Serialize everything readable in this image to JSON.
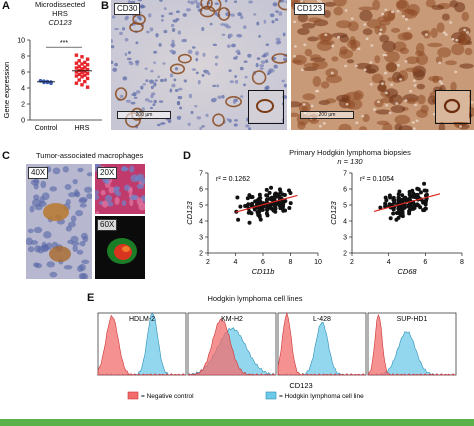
{
  "panels": {
    "A": {
      "letter": "A",
      "title_line1": "Microdissected",
      "title_line2": "HRS",
      "gene": "CD123",
      "significance": "***",
      "chart_data": {
        "type": "scatter",
        "categories": [
          "Control",
          "HRS"
        ],
        "ylabel": "Gene expression",
        "ylim": [
          0,
          10
        ],
        "yticks": [
          0,
          2,
          4,
          6,
          8,
          10
        ],
        "series": [
          {
            "values": [
              4.9,
              4.7,
              4.8,
              4.6,
              4.9,
              4.85,
              4.7,
              4.75
            ],
            "marker": "circle",
            "color": "#3a5bb5"
          },
          {
            "values": [
              8.1,
              7.9,
              7.6,
              7.4,
              7.2,
              7.1,
              7.0,
              6.9,
              6.7,
              6.6,
              6.5,
              6.4,
              6.3,
              6.2,
              6.1,
              6.0,
              5.9,
              5.8,
              5.7,
              5.6,
              5.5,
              5.4,
              5.2,
              5.0,
              4.8,
              4.6,
              4.4,
              4.1
            ],
            "marker": "square",
            "color": "#e8252b"
          }
        ]
      }
    },
    "B": {
      "letter": "B",
      "left_label": "CD30",
      "right_label": "CD123",
      "scale_left": "200 µm",
      "scale_right": "200 µm"
    },
    "C": {
      "letter": "C",
      "title": "Tumor-associated macrophages",
      "label_40x": "40X",
      "label_20x": "20X",
      "label_60x": "60X"
    },
    "D": {
      "letter": "D",
      "title": "Primary Hodgkin lymphoma biopsies",
      "n_label": "n = 130",
      "chart_data": [
        {
          "type": "scatter",
          "xlabel": "CD11b",
          "ylabel": "CD123",
          "xlim": [
            2,
            10
          ],
          "ylim": [
            2,
            7
          ],
          "xticks": [
            2,
            4,
            6,
            8,
            10
          ],
          "yticks": [
            2,
            3,
            4,
            5,
            6,
            7
          ],
          "annotation": "r² = 0.1262",
          "trend": {
            "x0": 4.0,
            "y0": 4.55,
            "x1": 8.5,
            "y1": 5.6
          }
        },
        {
          "type": "scatter",
          "xlabel": "CD68",
          "ylabel": "CD123",
          "xlim": [
            2,
            8
          ],
          "ylim": [
            2,
            7
          ],
          "xticks": [
            2,
            4,
            6,
            8
          ],
          "yticks": [
            2,
            3,
            4,
            5,
            6,
            7
          ],
          "annotation": "r² = 0.1054",
          "trend": {
            "x0": 3.2,
            "y0": 4.6,
            "x1": 6.8,
            "y1": 5.7
          }
        }
      ]
    },
    "E": {
      "letter": "E",
      "title": "Hodgkin lymphoma cell lines",
      "cell_lines": [
        "HDLM-2",
        "KM-H2",
        "L-428",
        "SUP-HD1"
      ],
      "xlabel": "CD123",
      "legend": {
        "neg": "= Negative control",
        "pos": "= Hodgkin lymphoma cell line"
      },
      "colors": {
        "neg": "#f26c6c",
        "pos": "#6dc9e8"
      }
    }
  }
}
